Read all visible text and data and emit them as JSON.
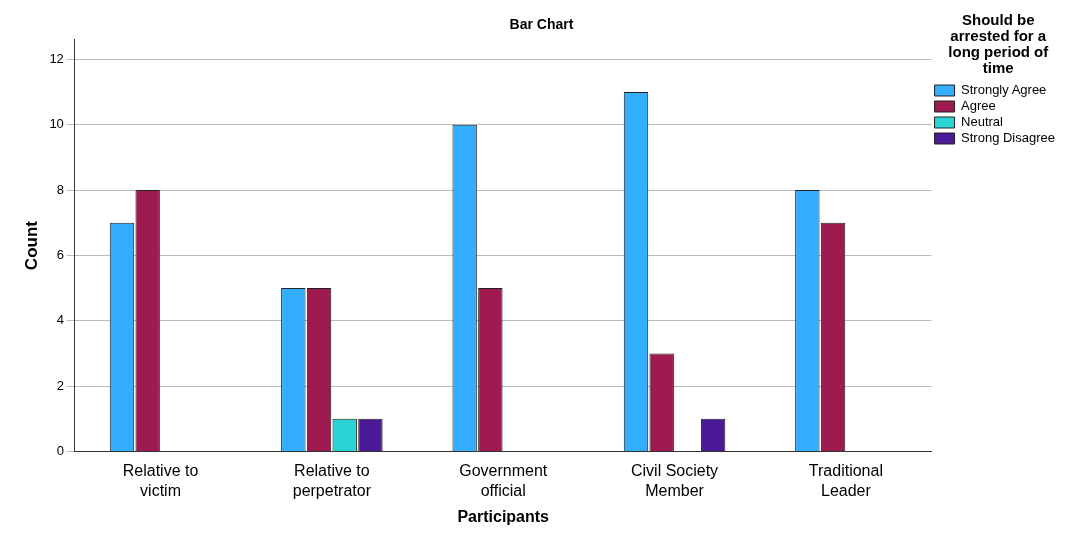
{
  "chart_data": {
    "type": "bar",
    "title": "Bar Chart",
    "xlabel": "Participants",
    "ylabel": "Count",
    "legend_title": "Should be arrested for a long period of time",
    "categories": [
      "Relative to victim",
      "Relative to perpetrator",
      "Government official",
      "Civil Society Member",
      "Traditional Leader"
    ],
    "series": [
      {
        "name": "Strongly Agree",
        "color": "#33adff",
        "values": [
          7,
          5,
          10,
          11,
          8
        ]
      },
      {
        "name": "Agree",
        "color": "#9e1a4f",
        "values": [
          8,
          5,
          5,
          3,
          7
        ]
      },
      {
        "name": "Neutral",
        "color": "#2ad4d4",
        "values": [
          null,
          1,
          null,
          null,
          null
        ]
      },
      {
        "name": "Strong Disagree",
        "color": "#4b1a99",
        "values": [
          null,
          1,
          null,
          1,
          null
        ]
      }
    ],
    "ylim": [
      0,
      12.6
    ],
    "yticks": [
      0,
      2,
      4,
      6,
      8,
      10,
      12
    ],
    "grid": "y",
    "legend": "right"
  }
}
